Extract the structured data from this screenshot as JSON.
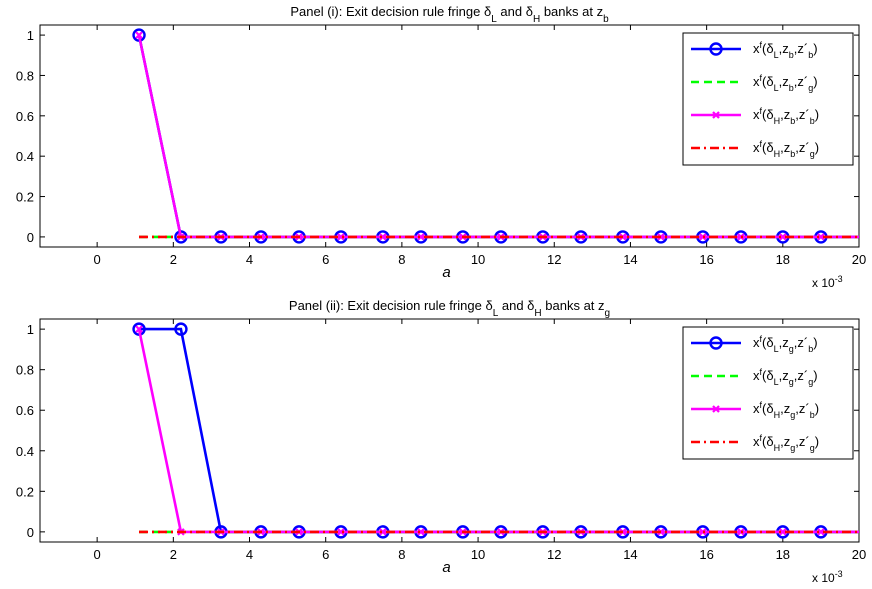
{
  "chart_data": [
    {
      "type": "line",
      "title": "Panel (i): Exit decision rule fringe δL and δH banks at zb",
      "title_parts": {
        "prefix": "Panel (i): Exit decision rule fringe ",
        "d1": "δ",
        "d1_sub": "L",
        "mid": " and ",
        "d2": "δ",
        "d2_sub": "H",
        "suffix": " banks at z",
        "z_sub": "b"
      },
      "xlabel": "a",
      "x_multiplier": "x 10",
      "x_multiplier_exp": "-3",
      "xlim": [
        -0.0015,
        0.02
      ],
      "ylim": [
        -0.05,
        1.05
      ],
      "xticks": [
        "0",
        "2",
        "4",
        "6",
        "8",
        "10",
        "12",
        "14",
        "16",
        "18",
        "20"
      ],
      "yticks": [
        "0",
        "0.2",
        "0.4",
        "0.6",
        "0.8",
        "1"
      ],
      "legend_position": "top-right",
      "grid": false,
      "series": [
        {
          "name": "xf(δL,zb,z'b)",
          "label": {
            "d": "L",
            "z": "b",
            "zp": "b"
          },
          "color": "#0000ff",
          "style": "solid",
          "marker": "circle",
          "x": [
            0.0011,
            0.0022,
            0.00325,
            0.0043,
            0.0053,
            0.0064,
            0.0075,
            0.0085,
            0.0096,
            0.0106,
            0.0117,
            0.0127,
            0.0138,
            0.0148,
            0.0159,
            0.0169,
            0.018,
            0.019,
            0.02
          ],
          "y": [
            1,
            0,
            0,
            0,
            0,
            0,
            0,
            0,
            0,
            0,
            0,
            0,
            0,
            0,
            0,
            0,
            0,
            0,
            0
          ]
        },
        {
          "name": "xf(δL,zb,z'g)",
          "label": {
            "d": "L",
            "z": "b",
            "zp": "g"
          },
          "color": "#00ff00",
          "style": "dashed",
          "marker": "none",
          "x": [
            0.0011,
            0.0022,
            0.00325,
            0.0043,
            0.0053,
            0.0064,
            0.0075,
            0.0085,
            0.0096,
            0.0106,
            0.0117,
            0.0127,
            0.0138,
            0.0148,
            0.0159,
            0.0169,
            0.018,
            0.019,
            0.02
          ],
          "y": [
            0,
            0,
            0,
            0,
            0,
            0,
            0,
            0,
            0,
            0,
            0,
            0,
            0,
            0,
            0,
            0,
            0,
            0,
            0
          ]
        },
        {
          "name": "xf(δH,zb,z'b)",
          "label": {
            "d": "H",
            "z": "b",
            "zp": "b"
          },
          "color": "#ff00ff",
          "style": "solid",
          "marker": "x",
          "x": [
            0.0011,
            0.0022,
            0.00325,
            0.0043,
            0.0053,
            0.0064,
            0.0075,
            0.0085,
            0.0096,
            0.0106,
            0.0117,
            0.0127,
            0.0138,
            0.0148,
            0.0159,
            0.0169,
            0.018,
            0.019,
            0.02
          ],
          "y": [
            1,
            0,
            0,
            0,
            0,
            0,
            0,
            0,
            0,
            0,
            0,
            0,
            0,
            0,
            0,
            0,
            0,
            0,
            0
          ]
        },
        {
          "name": "xf(δH,zb,z'g)",
          "label": {
            "d": "H",
            "z": "b",
            "zp": "g"
          },
          "color": "#ff0000",
          "style": "dashdot",
          "marker": "none",
          "x": [
            0.0011,
            0.0022,
            0.00325,
            0.0043,
            0.0053,
            0.0064,
            0.0075,
            0.0085,
            0.0096,
            0.0106,
            0.0117,
            0.0127,
            0.0138,
            0.0148,
            0.0159,
            0.0169,
            0.018,
            0.019,
            0.02
          ],
          "y": [
            0,
            0,
            0,
            0,
            0,
            0,
            0,
            0,
            0,
            0,
            0,
            0,
            0,
            0,
            0,
            0,
            0,
            0,
            0
          ]
        }
      ]
    },
    {
      "type": "line",
      "title": "Panel (ii): Exit decision rule fringe δL and δH banks at zg",
      "title_parts": {
        "prefix": "Panel (ii): Exit decision rule fringe ",
        "d1": "δ",
        "d1_sub": "L",
        "mid": " and ",
        "d2": "δ",
        "d2_sub": "H",
        "suffix": " banks at z",
        "z_sub": "g"
      },
      "xlabel": "a",
      "x_multiplier": "x 10",
      "x_multiplier_exp": "-3",
      "xlim": [
        -0.0015,
        0.02
      ],
      "ylim": [
        -0.05,
        1.05
      ],
      "xticks": [
        "0",
        "2",
        "4",
        "6",
        "8",
        "10",
        "12",
        "14",
        "16",
        "18",
        "20"
      ],
      "yticks": [
        "0",
        "0.2",
        "0.4",
        "0.6",
        "0.8",
        "1"
      ],
      "legend_position": "top-right",
      "grid": false,
      "series": [
        {
          "name": "xf(δL,zg,z'b)",
          "label": {
            "d": "L",
            "z": "g",
            "zp": "b"
          },
          "color": "#0000ff",
          "style": "solid",
          "marker": "circle",
          "x": [
            0.0011,
            0.0022,
            0.00325,
            0.0043,
            0.0053,
            0.0064,
            0.0075,
            0.0085,
            0.0096,
            0.0106,
            0.0117,
            0.0127,
            0.0138,
            0.0148,
            0.0159,
            0.0169,
            0.018,
            0.019,
            0.02
          ],
          "y": [
            1,
            1,
            0,
            0,
            0,
            0,
            0,
            0,
            0,
            0,
            0,
            0,
            0,
            0,
            0,
            0,
            0,
            0,
            0
          ]
        },
        {
          "name": "xf(δL,zg,z'g)",
          "label": {
            "d": "L",
            "z": "g",
            "zp": "g"
          },
          "color": "#00ff00",
          "style": "dashed",
          "marker": "none",
          "x": [
            0.0011,
            0.0022,
            0.00325,
            0.0043,
            0.0053,
            0.0064,
            0.0075,
            0.0085,
            0.0096,
            0.0106,
            0.0117,
            0.0127,
            0.0138,
            0.0148,
            0.0159,
            0.0169,
            0.018,
            0.019,
            0.02
          ],
          "y": [
            0,
            0,
            0,
            0,
            0,
            0,
            0,
            0,
            0,
            0,
            0,
            0,
            0,
            0,
            0,
            0,
            0,
            0,
            0
          ]
        },
        {
          "name": "xf(δH,zg,z'b)",
          "label": {
            "d": "H",
            "z": "g",
            "zp": "b"
          },
          "color": "#ff00ff",
          "style": "solid",
          "marker": "x",
          "x": [
            0.0011,
            0.0022,
            0.00325,
            0.0043,
            0.0053,
            0.0064,
            0.0075,
            0.0085,
            0.0096,
            0.0106,
            0.0117,
            0.0127,
            0.0138,
            0.0148,
            0.0159,
            0.0169,
            0.018,
            0.019,
            0.02
          ],
          "y": [
            1,
            0,
            0,
            0,
            0,
            0,
            0,
            0,
            0,
            0,
            0,
            0,
            0,
            0,
            0,
            0,
            0,
            0,
            0
          ]
        },
        {
          "name": "xf(δH,zg,z'g)",
          "label": {
            "d": "H",
            "z": "g",
            "zp": "g"
          },
          "color": "#ff0000",
          "style": "dashdot",
          "marker": "none",
          "x": [
            0.0011,
            0.0022,
            0.00325,
            0.0043,
            0.0053,
            0.0064,
            0.0075,
            0.0085,
            0.0096,
            0.0106,
            0.0117,
            0.0127,
            0.0138,
            0.0148,
            0.0159,
            0.0169,
            0.018,
            0.019,
            0.02
          ],
          "y": [
            0,
            0,
            0,
            0,
            0,
            0,
            0,
            0,
            0,
            0,
            0,
            0,
            0,
            0,
            0,
            0,
            0,
            0,
            0
          ]
        }
      ]
    }
  ]
}
